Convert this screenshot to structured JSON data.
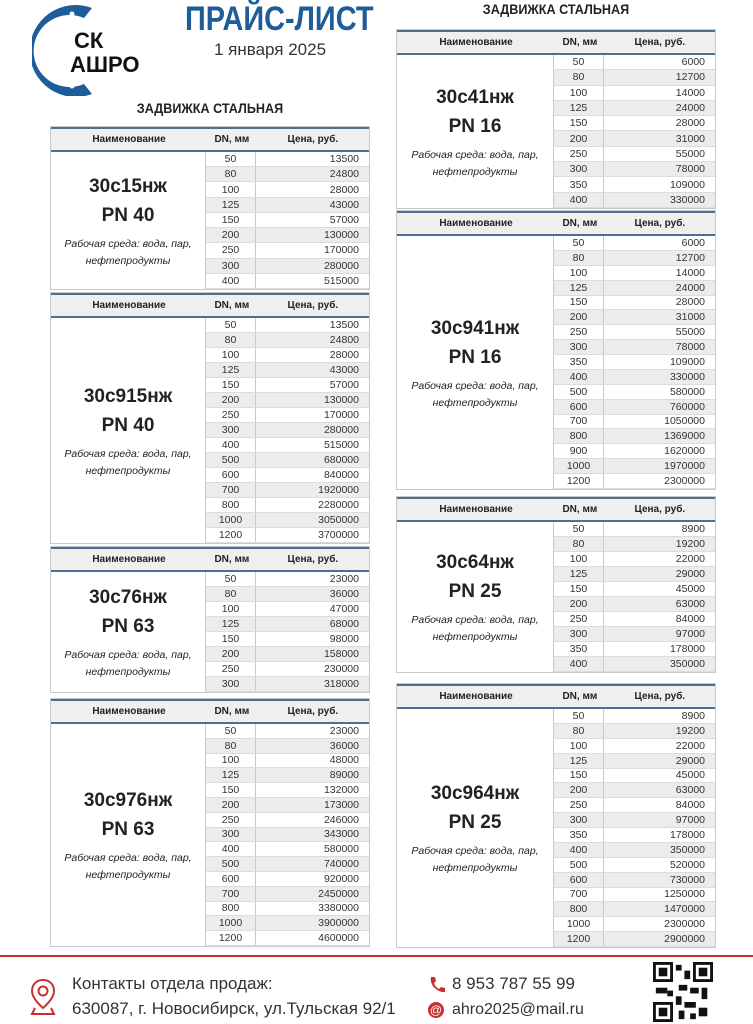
{
  "header": {
    "title": "ПРАЙС-ЛИСТ",
    "date": "1 января 2025",
    "logo_text": "СК АШРО"
  },
  "section_title": "ЗАДВИЖКА СТАЛЬНАЯ",
  "columns": {
    "name": "Наименование",
    "dn": "DN, мм",
    "price": "Цена, руб."
  },
  "medium": "Рабочая среда: вода, пар, нефтепродукты",
  "tables": [
    {
      "model": "30с15нж",
      "pn": "PN 40",
      "dn": [
        "50",
        "80",
        "100",
        "125",
        "150",
        "200",
        "250",
        "300",
        "400"
      ],
      "price": [
        "13500",
        "24800",
        "28000",
        "43000",
        "57000",
        "130000",
        "170000",
        "280000",
        "515000"
      ]
    },
    {
      "model": "30с915нж",
      "pn": "PN 40",
      "dn": [
        "50",
        "80",
        "100",
        "125",
        "150",
        "200",
        "250",
        "300",
        "400",
        "500",
        "600",
        "700",
        "800",
        "1000",
        "1200"
      ],
      "price": [
        "13500",
        "24800",
        "28000",
        "43000",
        "57000",
        "130000",
        "170000",
        "280000",
        "515000",
        "680000",
        "840000",
        "1920000",
        "2280000",
        "3050000",
        "3700000"
      ]
    },
    {
      "model": "30с76нж",
      "pn": "PN 63",
      "dn": [
        "50",
        "80",
        "100",
        "125",
        "150",
        "200",
        "250",
        "300"
      ],
      "price": [
        "23000",
        "36000",
        "47000",
        "68000",
        "98000",
        "158000",
        "230000",
        "318000"
      ]
    },
    {
      "model": "30с976нж",
      "pn": "PN 63",
      "dn": [
        "50",
        "80",
        "100",
        "125",
        "150",
        "200",
        "250",
        "300",
        "400",
        "500",
        "600",
        "700",
        "800",
        "1000",
        "1200"
      ],
      "price": [
        "23000",
        "36000",
        "48000",
        "89000",
        "132000",
        "173000",
        "246000",
        "343000",
        "580000",
        "740000",
        "920000",
        "2450000",
        "3380000",
        "3900000",
        "4600000"
      ]
    },
    {
      "model": "30с41нж",
      "pn": "PN 16",
      "dn": [
        "50",
        "80",
        "100",
        "125",
        "150",
        "200",
        "250",
        "300",
        "350",
        "400"
      ],
      "price": [
        "6000",
        "12700",
        "14000",
        "24000",
        "28000",
        "31000",
        "55000",
        "78000",
        "109000",
        "330000"
      ]
    },
    {
      "model": "30с941нж",
      "pn": "PN 16",
      "dn": [
        "50",
        "80",
        "100",
        "125",
        "150",
        "200",
        "250",
        "300",
        "350",
        "400",
        "500",
        "600",
        "700",
        "800",
        "900",
        "1000",
        "1200"
      ],
      "price": [
        "6000",
        "12700",
        "14000",
        "24000",
        "28000",
        "31000",
        "55000",
        "78000",
        "109000",
        "330000",
        "580000",
        "760000",
        "1050000",
        "1369000",
        "1620000",
        "1970000",
        "2300000"
      ]
    },
    {
      "model": "30с64нж",
      "pn": "PN 25",
      "dn": [
        "50",
        "80",
        "100",
        "125",
        "150",
        "200",
        "250",
        "300",
        "350",
        "400"
      ],
      "price": [
        "8900",
        "19200",
        "22000",
        "29000",
        "45000",
        "63000",
        "84000",
        "97000",
        "178000",
        "350000"
      ]
    },
    {
      "model": "30с964нж",
      "pn": "PN 25",
      "dn": [
        "50",
        "80",
        "100",
        "125",
        "150",
        "200",
        "250",
        "300",
        "350",
        "400",
        "500",
        "600",
        "700",
        "800",
        "1000",
        "1200"
      ],
      "price": [
        "8900",
        "19200",
        "22000",
        "29000",
        "45000",
        "63000",
        "84000",
        "97000",
        "178000",
        "350000",
        "520000",
        "730000",
        "1250000",
        "1470000",
        "2300000",
        "2900000"
      ]
    }
  ],
  "footer": {
    "contacts_label": "Контакты отдела продаж:",
    "address": "630087, г. Новосибирск, ул.Тульская 92/1",
    "phone": "8 953 787 55 99",
    "email": "ahro2025@mail.ru",
    "accent": "#c9302c"
  }
}
